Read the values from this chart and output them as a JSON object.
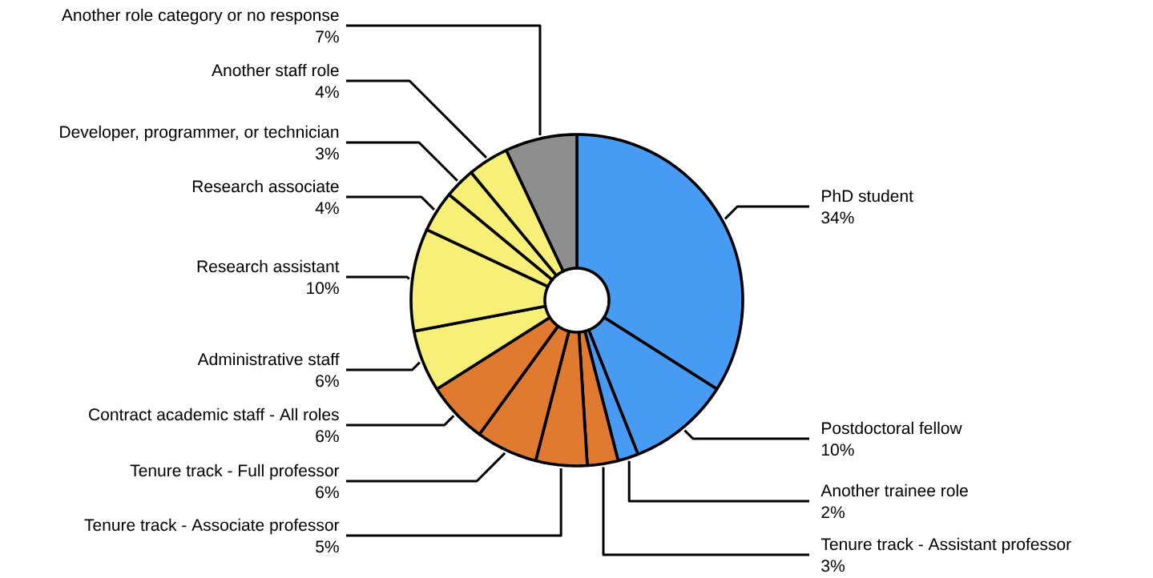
{
  "chart_data": {
    "type": "donut",
    "categories": [
      "PhD student",
      "Postdoctoral fellow",
      "Another trainee role",
      "Tenure track - Assistant professor",
      "Tenure track - Associate professor",
      "Tenure track - Full professor",
      "Contract academic staff - All roles",
      "Administrative staff",
      "Research assistant",
      "Research associate",
      "Developer, programmer, or technician",
      "Another staff role",
      "Another role category or no response"
    ],
    "values": [
      34,
      10,
      2,
      3,
      5,
      6,
      6,
      6,
      10,
      4,
      3,
      4,
      7
    ],
    "value_labels": [
      "34%",
      "10%",
      "2%",
      "3%",
      "5%",
      "6%",
      "6%",
      "6%",
      "10%",
      "4%",
      "3%",
      "4%",
      "7%"
    ],
    "colors": [
      "#489bf3",
      "#489bf3",
      "#489bf3",
      "#e17a31",
      "#e17a31",
      "#e17a31",
      "#e17a31",
      "#f8ef78",
      "#f8ef78",
      "#f8ef78",
      "#f8ef78",
      "#f8ef78",
      "#8e8e8e"
    ]
  }
}
